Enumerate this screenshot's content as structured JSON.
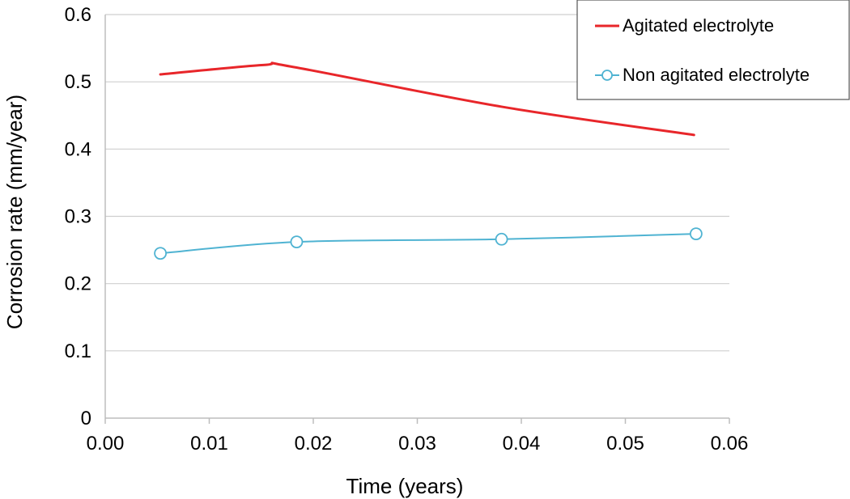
{
  "chart_data": {
    "type": "line",
    "xlabel": "Time (years)",
    "ylabel": "Corrosion rate (mm/year)",
    "xlim": [
      0,
      0.06
    ],
    "ylim": [
      0,
      0.6
    ],
    "xticks": [
      "0.00",
      "0.01",
      "0.02",
      "0.03",
      "0.04",
      "0.05",
      "0.06"
    ],
    "yticks": [
      "0",
      "0.1",
      "0.2",
      "0.3",
      "0.4",
      "0.5",
      "0.6"
    ],
    "grid": "horizontal",
    "legend_position": "top-right",
    "series": [
      {
        "name": "Agitated electrolyte",
        "color": "#e8262a",
        "marker": "none",
        "x": [
          0.0053,
          0.0152,
          0.0181,
          0.0381,
          0.0566
        ],
        "y": [
          0.511,
          0.525,
          0.522,
          0.463,
          0.421
        ]
      },
      {
        "name": "Non agitated electrolyte",
        "color": "#4fb3d2",
        "marker": "circle",
        "x": [
          0.0053,
          0.0184,
          0.0381,
          0.0568
        ],
        "y": [
          0.245,
          0.262,
          0.266,
          0.274
        ]
      }
    ]
  }
}
